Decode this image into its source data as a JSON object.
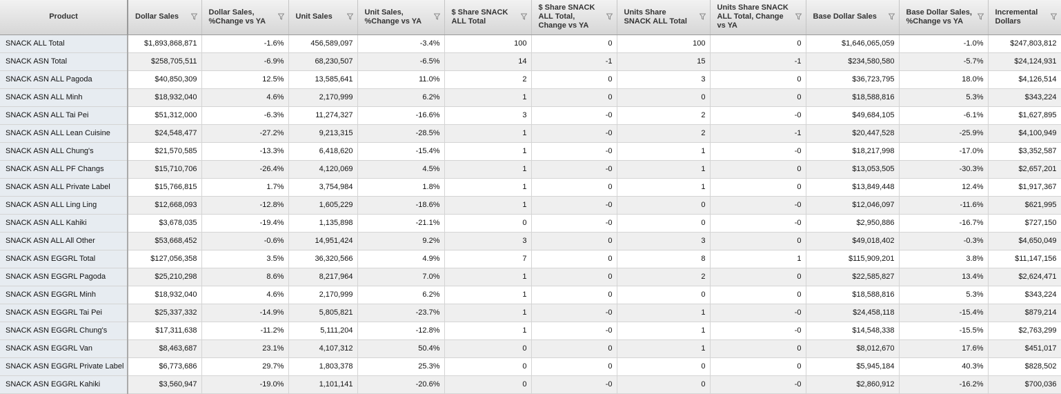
{
  "table": {
    "headers": [
      "Product",
      "Dollar Sales",
      "Dollar Sales, %Change vs YA",
      "Unit Sales",
      "Unit Sales, %Change vs YA",
      "$ Share SNACK ALL Total",
      "$ Share SNACK ALL Total, Change vs YA",
      "Units Share SNACK ALL Total",
      "Units Share SNACK ALL Total, Change vs YA",
      "Base Dollar Sales",
      "Base Dollar Sales, %Change vs YA",
      "Incremental Dollars"
    ],
    "rows": [
      [
        "SNACK ALL Total",
        "$1,893,868,871",
        "-1.6%",
        "456,589,097",
        "-3.4%",
        "100",
        "0",
        "100",
        "0",
        "$1,646,065,059",
        "-1.0%",
        "$247,803,812"
      ],
      [
        "SNACK ASN Total",
        "$258,705,511",
        "-6.9%",
        "68,230,507",
        "-6.5%",
        "14",
        "-1",
        "15",
        "-1",
        "$234,580,580",
        "-5.7%",
        "$24,124,931"
      ],
      [
        "SNACK ASN ALL Pagoda",
        "$40,850,309",
        "12.5%",
        "13,585,641",
        "11.0%",
        "2",
        "0",
        "3",
        "0",
        "$36,723,795",
        "18.0%",
        "$4,126,514"
      ],
      [
        "SNACK ASN ALL Minh",
        "$18,932,040",
        "4.6%",
        "2,170,999",
        "6.2%",
        "1",
        "0",
        "0",
        "0",
        "$18,588,816",
        "5.3%",
        "$343,224"
      ],
      [
        "SNACK ASN ALL Tai Pei",
        "$51,312,000",
        "-6.3%",
        "11,274,327",
        "-16.6%",
        "3",
        "-0",
        "2",
        "-0",
        "$49,684,105",
        "-6.1%",
        "$1,627,895"
      ],
      [
        "SNACK ASN ALL Lean Cuisine",
        "$24,548,477",
        "-27.2%",
        "9,213,315",
        "-28.5%",
        "1",
        "-0",
        "2",
        "-1",
        "$20,447,528",
        "-25.9%",
        "$4,100,949"
      ],
      [
        "SNACK ASN ALL Chung's",
        "$21,570,585",
        "-13.3%",
        "6,418,620",
        "-15.4%",
        "1",
        "-0",
        "1",
        "-0",
        "$18,217,998",
        "-17.0%",
        "$3,352,587"
      ],
      [
        "SNACK ASN ALL PF Changs",
        "$15,710,706",
        "-26.4%",
        "4,120,069",
        "4.5%",
        "1",
        "-0",
        "1",
        "0",
        "$13,053,505",
        "-30.3%",
        "$2,657,201"
      ],
      [
        "SNACK ASN ALL Private Label",
        "$15,766,815",
        "1.7%",
        "3,754,984",
        "1.8%",
        "1",
        "0",
        "1",
        "0",
        "$13,849,448",
        "12.4%",
        "$1,917,367"
      ],
      [
        "SNACK ASN ALL Ling Ling",
        "$12,668,093",
        "-12.8%",
        "1,605,229",
        "-18.6%",
        "1",
        "-0",
        "0",
        "-0",
        "$12,046,097",
        "-11.6%",
        "$621,995"
      ],
      [
        "SNACK ASN ALL Kahiki",
        "$3,678,035",
        "-19.4%",
        "1,135,898",
        "-21.1%",
        "0",
        "-0",
        "0",
        "-0",
        "$2,950,886",
        "-16.7%",
        "$727,150"
      ],
      [
        "SNACK ASN ALL All Other",
        "$53,668,452",
        "-0.6%",
        "14,951,424",
        "9.2%",
        "3",
        "0",
        "3",
        "0",
        "$49,018,402",
        "-0.3%",
        "$4,650,049"
      ],
      [
        "SNACK ASN EGGRL Total",
        "$127,056,358",
        "3.5%",
        "36,320,566",
        "4.9%",
        "7",
        "0",
        "8",
        "1",
        "$115,909,201",
        "3.8%",
        "$11,147,156"
      ],
      [
        "SNACK ASN EGGRL Pagoda",
        "$25,210,298",
        "8.6%",
        "8,217,964",
        "7.0%",
        "1",
        "0",
        "2",
        "0",
        "$22,585,827",
        "13.4%",
        "$2,624,471"
      ],
      [
        "SNACK ASN EGGRL Minh",
        "$18,932,040",
        "4.6%",
        "2,170,999",
        "6.2%",
        "1",
        "0",
        "0",
        "0",
        "$18,588,816",
        "5.3%",
        "$343,224"
      ],
      [
        "SNACK ASN EGGRL Tai Pei",
        "$25,337,332",
        "-14.9%",
        "5,805,821",
        "-23.7%",
        "1",
        "-0",
        "1",
        "-0",
        "$24,458,118",
        "-15.4%",
        "$879,214"
      ],
      [
        "SNACK ASN EGGRL Chung's",
        "$17,311,638",
        "-11.2%",
        "5,111,204",
        "-12.8%",
        "1",
        "-0",
        "1",
        "-0",
        "$14,548,338",
        "-15.5%",
        "$2,763,299"
      ],
      [
        "SNACK ASN EGGRL Van",
        "$8,463,687",
        "23.1%",
        "4,107,312",
        "50.4%",
        "0",
        "0",
        "1",
        "0",
        "$8,012,670",
        "17.6%",
        "$451,017"
      ],
      [
        "SNACK ASN EGGRL Private Label",
        "$6,773,686",
        "29.7%",
        "1,803,378",
        "25.3%",
        "0",
        "0",
        "0",
        "0",
        "$5,945,184",
        "40.3%",
        "$828,502"
      ],
      [
        "SNACK ASN EGGRL Kahiki",
        "$3,560,947",
        "-19.0%",
        "1,101,141",
        "-20.6%",
        "0",
        "-0",
        "0",
        "-0",
        "$2,860,912",
        "-16.2%",
        "$700,036"
      ]
    ]
  }
}
